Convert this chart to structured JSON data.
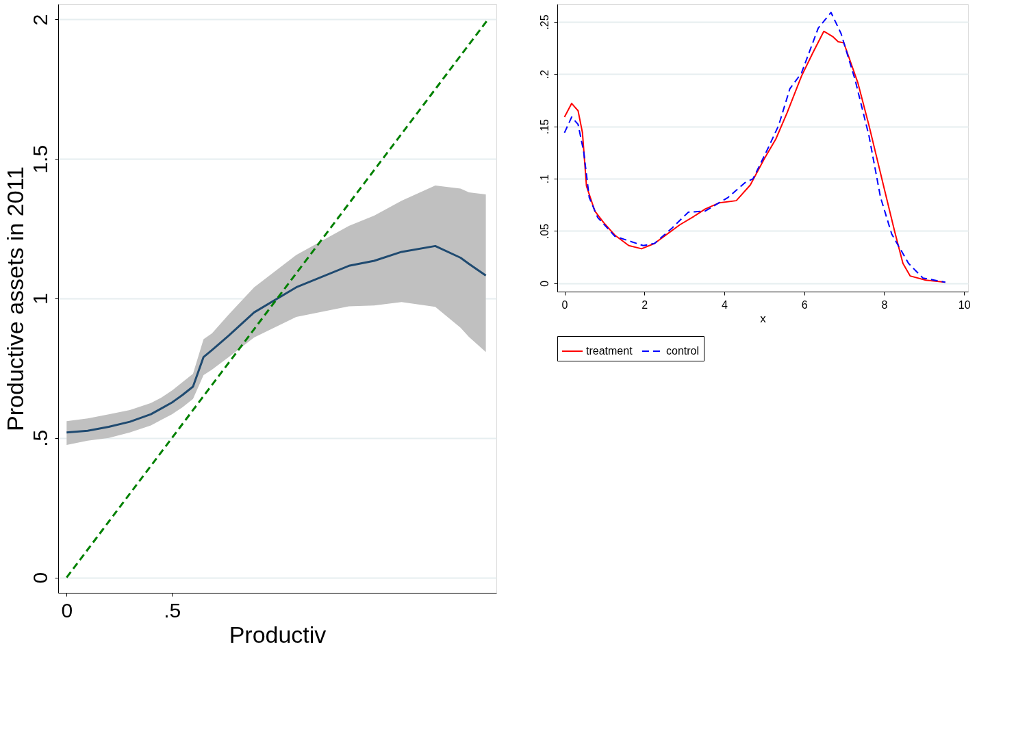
{
  "chart_data": [
    {
      "type": "line",
      "ylabel": "Productive assets in 2011",
      "xlabel": "Productiv",
      "xlim": [
        -0.04,
        2.04
      ],
      "ylim": [
        -0.055,
        2.055
      ],
      "xticks": [
        0,
        {
          "value": 0.5,
          "label": ".5"
        }
      ],
      "yticks": [
        0,
        {
          "value": 0.5,
          "label": ".5"
        },
        1,
        1.5,
        2
      ],
      "grid": "y",
      "series": [
        {
          "type": "line",
          "color": "#1f4a70",
          "line_style": "solid",
          "x": [
            0,
            0.1,
            0.2,
            0.3,
            0.4,
            0.45,
            0.5,
            0.55,
            0.6,
            0.65,
            0.69,
            0.77,
            0.89,
            1.09,
            1.34,
            1.46,
            1.59,
            1.75,
            1.87,
            1.91,
            1.99
          ],
          "values": [
            0.52,
            0.526,
            0.54,
            0.558,
            0.585,
            0.606,
            0.627,
            0.654,
            0.684,
            0.79,
            0.815,
            0.867,
            0.95,
            1.04,
            1.117,
            1.135,
            1.167,
            1.188,
            1.146,
            1.124,
            1.082
          ],
          "lower": [
            0.475,
            0.49,
            0.5,
            0.52,
            0.545,
            0.565,
            0.585,
            0.61,
            0.64,
            0.725,
            0.745,
            0.79,
            0.86,
            0.934,
            0.972,
            0.975,
            0.987,
            0.97,
            0.895,
            0.862,
            0.808
          ],
          "upper": [
            0.56,
            0.57,
            0.585,
            0.6,
            0.625,
            0.645,
            0.67,
            0.7,
            0.73,
            0.854,
            0.875,
            0.943,
            1.04,
            1.156,
            1.26,
            1.297,
            1.35,
            1.405,
            1.394,
            1.38,
            1.373
          ]
        },
        {
          "type": "line",
          "color": "#008000",
          "line_style": "dashed",
          "x": [
            0,
            2
          ],
          "values": [
            0,
            2
          ]
        }
      ]
    },
    {
      "type": "line",
      "xlabel": "x",
      "xlim": [
        -0.18,
        10.1
      ],
      "ylim": [
        -0.008,
        0.267
      ],
      "xticks": [
        0,
        2,
        4,
        6,
        8,
        10
      ],
      "yticks": [
        0,
        {
          "value": 0.05,
          "label": ".05"
        },
        {
          "value": 0.1,
          "label": ".1"
        },
        {
          "value": 0.15,
          "label": ".15"
        },
        {
          "value": 0.2,
          "label": ".2"
        },
        {
          "value": 0.25,
          "label": ".25"
        }
      ],
      "grid": "y",
      "legend": "bottom",
      "series": [
        {
          "name": "treatment",
          "color": "#ff0000",
          "line_style": "solid",
          "x": [
            0,
            0.18,
            0.34,
            0.45,
            0.55,
            0.76,
            0.98,
            1.26,
            1.61,
            1.93,
            2.25,
            2.46,
            2.89,
            3.24,
            3.52,
            3.88,
            4.3,
            4.65,
            5.0,
            5.29,
            5.57,
            5.93,
            6.21,
            6.49,
            6.71,
            6.85,
            6.99,
            7.34,
            7.62,
            7.98,
            8.26,
            8.47,
            8.65,
            9.04,
            9.53
          ],
          "values": [
            0.159,
            0.172,
            0.165,
            0.144,
            0.093,
            0.069,
            0.058,
            0.046,
            0.036,
            0.033,
            0.038,
            0.044,
            0.056,
            0.064,
            0.071,
            0.077,
            0.079,
            0.094,
            0.119,
            0.138,
            0.163,
            0.198,
            0.22,
            0.241,
            0.236,
            0.231,
            0.23,
            0.192,
            0.151,
            0.094,
            0.05,
            0.019,
            0.007,
            0.003,
            0.001
          ]
        },
        {
          "name": "control",
          "color": "#0000ff",
          "line_style": "dashed",
          "x": [
            0,
            0.18,
            0.34,
            0.48,
            0.62,
            0.83,
            1.26,
            1.97,
            2.25,
            2.67,
            3.1,
            3.52,
            4.09,
            4.51,
            4.72,
            5.08,
            5.36,
            5.64,
            5.93,
            6.35,
            6.67,
            6.92,
            7.27,
            7.62,
            7.91,
            8.19,
            8.61,
            8.97,
            9.53
          ],
          "values": [
            0.144,
            0.159,
            0.152,
            0.126,
            0.082,
            0.063,
            0.045,
            0.036,
            0.038,
            0.052,
            0.068,
            0.069,
            0.082,
            0.096,
            0.1,
            0.128,
            0.151,
            0.186,
            0.201,
            0.244,
            0.259,
            0.239,
            0.195,
            0.141,
            0.082,
            0.047,
            0.019,
            0.005,
            0.001
          ]
        }
      ]
    }
  ]
}
